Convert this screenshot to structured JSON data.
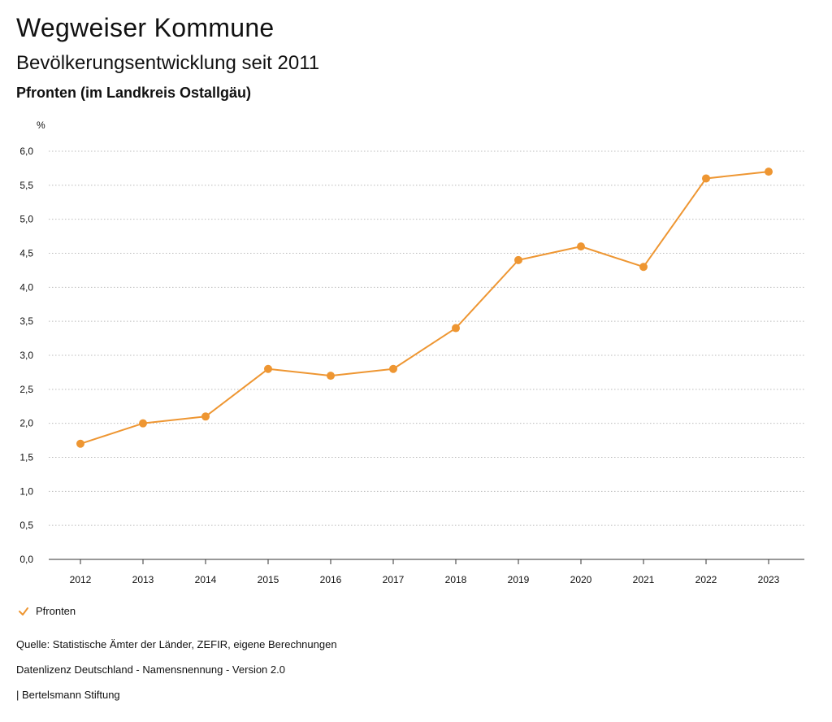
{
  "header": {
    "title": "Wegweiser Kommune",
    "subtitle": "Bevölkerungsentwicklung seit 2011",
    "region": "Pfronten (im Landkreis Ostallgäu)"
  },
  "legend": {
    "label": "Pfronten"
  },
  "footer": {
    "source": "Quelle: Statistische Ämter der Länder, ZEFIR, eigene Berechnungen",
    "license": "Datenlizenz Deutschland - Namensnennung - Version 2.0",
    "publisher": "| Bertelsmann Stiftung"
  },
  "colors": {
    "series": "#ee9632",
    "grid": "#bbbbbb",
    "axis": "#333333"
  },
  "chart_data": {
    "type": "line",
    "title": "Bevölkerungsentwicklung seit 2011",
    "ylabel": "%",
    "xlabel": "",
    "categories": [
      "2012",
      "2013",
      "2014",
      "2015",
      "2016",
      "2017",
      "2018",
      "2019",
      "2020",
      "2021",
      "2022",
      "2023"
    ],
    "series": [
      {
        "name": "Pfronten",
        "values": [
          1.7,
          2.0,
          2.1,
          2.8,
          2.7,
          2.8,
          3.4,
          4.4,
          4.6,
          4.3,
          5.6,
          5.7
        ]
      }
    ],
    "ylim": [
      0,
      6
    ],
    "yticks": [
      "0,0",
      "0,5",
      "1,0",
      "1,5",
      "2,0",
      "2,5",
      "3,0",
      "3,5",
      "4,0",
      "4,5",
      "5,0",
      "5,5",
      "6,0"
    ],
    "grid": true,
    "legend_position": "bottom-left"
  }
}
